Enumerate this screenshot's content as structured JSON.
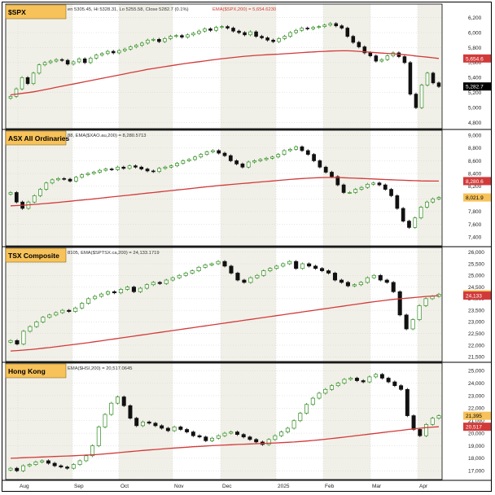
{
  "colors": {
    "up": "#2e8b1e",
    "down": "#111111",
    "ema": "#d23a3a",
    "band": "#f1f0e8",
    "label_bg": "#f7c25a",
    "grid": "#cfcfcf"
  },
  "x_axis": {
    "labels": [
      "Aug",
      "Sep",
      "Oct",
      "Nov",
      "Dec",
      "2025",
      "Feb",
      "Mar",
      "Apr"
    ]
  },
  "chart_data": [
    {
      "type": "candlestick",
      "name": "$SPX",
      "header": "en 5305.45, Hi 5328.31, Lo 5255.58, Close 5282.7 (0.1%)",
      "ema_legend": "EMA($SPX,200) = 5,654.6230",
      "ylim": [
        4720,
        6380
      ],
      "yticks": [
        "4,800",
        "5,000",
        "5,200",
        "5,400",
        "5,600",
        "5,800",
        "6,000",
        "6,200"
      ],
      "last_price": "5,282.7",
      "ema_badge": "5,654.6",
      "close": [
        5150,
        5250,
        5400,
        5320,
        5460,
        5570,
        5600,
        5620,
        5640,
        5630,
        5580,
        5610,
        5650,
        5600,
        5660,
        5700,
        5720,
        5750,
        5730,
        5760,
        5780,
        5810,
        5830,
        5860,
        5900,
        5910,
        5880,
        5920,
        5950,
        5960,
        5940,
        5970,
        5990,
        6020,
        6050,
        6030,
        6070,
        6080,
        6060,
        6020,
        6000,
        5970,
        6010,
        5950,
        5930,
        5900,
        5880,
        5920,
        5950,
        6000,
        6030,
        6060,
        6050,
        6070,
        6080,
        6100,
        6120,
        6090,
        6060,
        5950,
        5870,
        5810,
        5730,
        5690,
        5620,
        5640,
        5690,
        5730,
        5680,
        5600,
        5180,
        5000,
        5300,
        5460,
        5330,
        5282
      ],
      "ema": [
        5170,
        5180,
        5190,
        5200,
        5210,
        5225,
        5240,
        5255,
        5270,
        5285,
        5300,
        5315,
        5330,
        5345,
        5360,
        5375,
        5390,
        5405,
        5420,
        5435,
        5450,
        5465,
        5480,
        5495,
        5510,
        5522,
        5534,
        5546,
        5558,
        5570,
        5582,
        5592,
        5602,
        5612,
        5622,
        5632,
        5642,
        5652,
        5660,
        5668,
        5676,
        5684,
        5690,
        5696,
        5701,
        5705,
        5709,
        5713,
        5718,
        5723,
        5728,
        5733,
        5738,
        5742,
        5746,
        5750,
        5754,
        5756,
        5757,
        5757,
        5755,
        5750,
        5744,
        5738,
        5732,
        5727,
        5722,
        5718,
        5712,
        5705,
        5698,
        5688,
        5680,
        5673,
        5664,
        5655
      ]
    },
    {
      "type": "candlestick",
      "name": "ASX All Ordinaries",
      "header": "88, EMA($XAO.au,200) = 8,280.5713",
      "ema_legend": "",
      "ylim": [
        7260,
        9080
      ],
      "yticks": [
        "7,400",
        "7,600",
        "7,800",
        "8,000",
        "8,200",
        "8,400",
        "8,600",
        "8,800",
        "9,000"
      ],
      "last_price": "8,021.9",
      "ema_badge": "8,280.6",
      "close": [
        8100,
        7950,
        7850,
        7950,
        8050,
        8150,
        8250,
        8300,
        8320,
        8310,
        8280,
        8340,
        8380,
        8400,
        8420,
        8450,
        8470,
        8460,
        8500,
        8480,
        8520,
        8500,
        8470,
        8440,
        8430,
        8480,
        8500,
        8520,
        8560,
        8600,
        8620,
        8660,
        8700,
        8740,
        8760,
        8720,
        8680,
        8600,
        8550,
        8500,
        8580,
        8600,
        8620,
        8640,
        8660,
        8700,
        8760,
        8780,
        8820,
        8760,
        8700,
        8600,
        8500,
        8420,
        8350,
        8220,
        8100,
        8100,
        8150,
        8180,
        8230,
        8250,
        8220,
        8150,
        8050,
        7850,
        7650,
        7550,
        7700,
        7870,
        7950,
        8000,
        8022
      ],
      "ema": [
        7890,
        7895,
        7900,
        7906,
        7912,
        7920,
        7928,
        7936,
        7945,
        7954,
        7963,
        7972,
        7981,
        7990,
        8000,
        8010,
        8020,
        8030,
        8040,
        8050,
        8060,
        8070,
        8080,
        8090,
        8100,
        8110,
        8120,
        8130,
        8140,
        8150,
        8160,
        8170,
        8180,
        8190,
        8200,
        8210,
        8218,
        8226,
        8234,
        8242,
        8250,
        8258,
        8266,
        8274,
        8282,
        8290,
        8298,
        8306,
        8314,
        8320,
        8325,
        8330,
        8334,
        8336,
        8337,
        8336,
        8333,
        8329,
        8325,
        8321,
        8317,
        8313,
        8309,
        8305,
        8301,
        8297,
        8293,
        8289,
        8286,
        8283,
        8281,
        8280,
        8280
      ]
    },
    {
      "type": "candlestick",
      "name": "TSX Composite",
      "header": "8105, EMA($SPTSX.ca,200) = 24,133.1719",
      "ema_legend": "",
      "ylim": [
        21300,
        26200
      ],
      "yticks": [
        "21,500",
        "22,000",
        "22,500",
        "23,000",
        "23,500",
        "24,000",
        "24,500",
        "25,000",
        "25,500",
        "26,000"
      ],
      "last_price": "24,192",
      "ema_badge": "24,133",
      "close": [
        22200,
        22050,
        22600,
        22800,
        23000,
        23200,
        23300,
        23400,
        23500,
        23450,
        23600,
        23800,
        24000,
        24100,
        24200,
        24300,
        24250,
        24400,
        24500,
        24300,
        24450,
        24600,
        24700,
        24650,
        24800,
        24900,
        25000,
        25100,
        25200,
        25350,
        25450,
        25500,
        25600,
        25400,
        25100,
        24800,
        24700,
        24900,
        25000,
        25200,
        25300,
        25400,
        25500,
        25600,
        25300,
        25500,
        25400,
        25300,
        25200,
        25100,
        24800,
        24700,
        24550,
        24600,
        24700,
        24900,
        25000,
        24800,
        24700,
        24300,
        23300,
        22700,
        23100,
        23700,
        24000,
        24100,
        24192
      ],
      "ema": [
        21750,
        21770,
        21790,
        21810,
        21840,
        21870,
        21900,
        21935,
        21970,
        22005,
        22040,
        22075,
        22110,
        22150,
        22190,
        22230,
        22270,
        22310,
        22350,
        22390,
        22430,
        22470,
        22510,
        22550,
        22590,
        22630,
        22670,
        22710,
        22750,
        22790,
        22830,
        22870,
        22910,
        22950,
        22990,
        23030,
        23070,
        23110,
        23150,
        23190,
        23230,
        23270,
        23310,
        23350,
        23390,
        23430,
        23470,
        23510,
        23550,
        23590,
        23630,
        23670,
        23710,
        23750,
        23790,
        23830,
        23870,
        23905,
        23940,
        23970,
        23995,
        24020,
        24045,
        24070,
        24095,
        24115,
        24133
      ]
    },
    {
      "type": "candlestick",
      "name": "Hong Kong",
      "header": "EMA($HSI,200) = 20,517.0645",
      "ema_legend": "",
      "ylim": [
        16300,
        25600
      ],
      "yticks": [
        "17,000",
        "18,000",
        "19,000",
        "20,000",
        "21,000",
        "22,000",
        "23,000",
        "24,000",
        "25,000"
      ],
      "last_price": "21,395",
      "ema_badge": "20,517",
      "close": [
        17200,
        17000,
        17400,
        17500,
        17700,
        17800,
        17600,
        17400,
        17300,
        17200,
        17500,
        17800,
        18200,
        19000,
        20500,
        21500,
        22400,
        22900,
        22200,
        21200,
        20600,
        20900,
        20800,
        20600,
        20400,
        20200,
        20500,
        20300,
        20100,
        19800,
        19700,
        19400,
        19600,
        19800,
        20000,
        20100,
        19900,
        19700,
        19500,
        19300,
        19100,
        19500,
        19800,
        20100,
        20400,
        21000,
        21600,
        22300,
        22800,
        23200,
        23500,
        23800,
        24000,
        24300,
        24400,
        24200,
        24100,
        24500,
        24700,
        24400,
        24100,
        23800,
        23500,
        21400,
        20300,
        19800,
        20700,
        21200,
        21395
      ],
      "ema": [
        18000,
        18020,
        18040,
        18060,
        18080,
        18100,
        18120,
        18140,
        18160,
        18180,
        18200,
        18225,
        18250,
        18280,
        18310,
        18350,
        18395,
        18440,
        18485,
        18530,
        18575,
        18620,
        18660,
        18700,
        18740,
        18780,
        18815,
        18850,
        18885,
        18920,
        18950,
        18980,
        19005,
        19030,
        19055,
        19080,
        19100,
        19120,
        19140,
        19160,
        19180,
        19200,
        19220,
        19245,
        19270,
        19300,
        19335,
        19375,
        19420,
        19470,
        19520,
        19575,
        19630,
        19690,
        19750,
        19810,
        19870,
        19930,
        19990,
        20050,
        20110,
        20170,
        20230,
        20290,
        20345,
        20400,
        20450,
        20490,
        20517
      ]
    }
  ]
}
